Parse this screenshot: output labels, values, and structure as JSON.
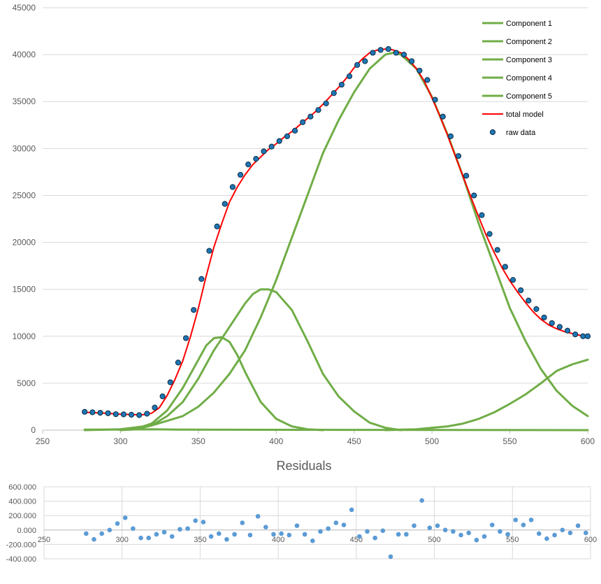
{
  "chart_data": [
    {
      "type": "line",
      "title": "",
      "xlabel": "",
      "ylabel": "",
      "xlim": [
        250,
        600
      ],
      "ylim": [
        0,
        45000
      ],
      "x_ticks": [
        250,
        300,
        350,
        400,
        450,
        500,
        550,
        600
      ],
      "y_ticks": [
        0,
        5000,
        10000,
        15000,
        20000,
        25000,
        30000,
        35000,
        40000,
        45000
      ],
      "x_tick_labels": [
        "250",
        "300",
        "350",
        "400",
        "450",
        "500",
        "550",
        "600"
      ],
      "y_tick_labels": [
        "0",
        "5000",
        "10000",
        "15000",
        "20000",
        "25000",
        "30000",
        "35000",
        "40000",
        "45000"
      ],
      "grid": "horizontal",
      "legend_position": "top-right",
      "colors": {
        "component": "#70ad47",
        "total": "#ff0000",
        "raw_fill": "#1f77b4",
        "raw_edge": "#0b2b45",
        "grid": "#d9d9d9"
      },
      "legend": [
        {
          "label": "Component 1",
          "kind": "line",
          "color": "#70ad47"
        },
        {
          "label": "Component 2",
          "kind": "line",
          "color": "#70ad47"
        },
        {
          "label": "Component 3",
          "kind": "line",
          "color": "#70ad47"
        },
        {
          "label": "Component 4",
          "kind": "line",
          "color": "#70ad47"
        },
        {
          "label": "Component 5",
          "kind": "line",
          "color": "#70ad47"
        },
        {
          "label": "total model",
          "kind": "line",
          "color": "#ff0000"
        },
        {
          "label": "raw data",
          "kind": "marker",
          "color": "#1f77b4"
        }
      ],
      "series": [
        {
          "name": "Component 1",
          "x": [
            277,
            300,
            320,
            340,
            600
          ],
          "y": [
            50,
            50,
            100,
            50,
            0
          ]
        },
        {
          "name": "Component 2",
          "x": [
            300,
            310,
            320,
            330,
            340,
            350,
            355,
            360,
            365,
            370,
            375,
            380,
            390,
            400,
            410,
            420,
            430
          ],
          "y": [
            0,
            150,
            700,
            2100,
            4500,
            7500,
            9000,
            9800,
            9900,
            9400,
            8000,
            6200,
            3000,
            1200,
            400,
            100,
            0
          ]
        },
        {
          "name": "Component 3",
          "x": [
            300,
            310,
            320,
            330,
            340,
            350,
            360,
            370,
            380,
            385,
            390,
            395,
            400,
            410,
            420,
            430,
            440,
            450,
            460,
            470,
            480
          ],
          "y": [
            0,
            100,
            500,
            1500,
            3000,
            5500,
            8500,
            11000,
            13500,
            14500,
            15000,
            15000,
            14700,
            12800,
            9500,
            6000,
            3600,
            2000,
            800,
            250,
            0
          ]
        },
        {
          "name": "Component 4",
          "x": [
            277,
            300,
            320,
            340,
            350,
            360,
            370,
            380,
            390,
            400,
            410,
            420,
            430,
            440,
            450,
            460,
            470,
            475,
            480,
            490,
            500,
            510,
            520,
            530,
            540,
            550,
            560,
            570,
            580,
            590,
            600
          ],
          "y": [
            0,
            100,
            500,
            1500,
            2500,
            4000,
            6000,
            8500,
            12000,
            16000,
            20500,
            25000,
            29500,
            33000,
            36000,
            38500,
            40000,
            40200,
            40000,
            38500,
            35500,
            31500,
            27000,
            22000,
            17500,
            13000,
            9500,
            6500,
            4200,
            2600,
            1500
          ]
        },
        {
          "name": "Component 5",
          "x": [
            470,
            480,
            490,
            500,
            510,
            520,
            530,
            540,
            550,
            560,
            570,
            580,
            590,
            600
          ],
          "y": [
            0,
            50,
            100,
            250,
            400,
            700,
            1200,
            1900,
            2800,
            3800,
            5000,
            6300,
            7000,
            7500
          ]
        },
        {
          "name": "total model",
          "x": [
            277,
            290,
            300,
            310,
            315,
            320,
            325,
            330,
            335,
            340,
            345,
            350,
            355,
            360,
            365,
            370,
            375,
            380,
            385,
            390,
            395,
            400,
            405,
            410,
            415,
            420,
            425,
            430,
            435,
            440,
            445,
            450,
            455,
            460,
            465,
            470,
            475,
            480,
            485,
            490,
            495,
            500,
            505,
            510,
            515,
            520,
            525,
            530,
            535,
            540,
            545,
            550,
            555,
            560,
            565,
            570,
            575,
            580,
            585,
            590,
            595,
            600
          ],
          "y": [
            1900,
            1800,
            1700,
            1650,
            1650,
            1800,
            2400,
            3700,
            5400,
            7400,
            10000,
            13000,
            16400,
            19500,
            22000,
            24300,
            25900,
            27200,
            28300,
            29100,
            29900,
            30500,
            31200,
            31800,
            32500,
            33200,
            33900,
            34700,
            35600,
            36500,
            37500,
            38600,
            39500,
            40200,
            40500,
            40600,
            40500,
            40200,
            39500,
            38500,
            37200,
            35400,
            33500,
            31400,
            29200,
            27000,
            24800,
            22700,
            20700,
            18900,
            17300,
            15900,
            14700,
            13600,
            12600,
            11800,
            11200,
            10800,
            10500,
            10300,
            10100,
            10000
          ]
        },
        {
          "name": "raw data",
          "x": [
            277,
            282,
            287,
            292,
            297,
            302,
            307,
            312,
            317,
            322,
            327,
            332,
            337,
            342,
            347,
            352,
            357,
            362,
            367,
            372,
            377,
            382,
            387,
            392,
            397,
            402,
            407,
            412,
            417,
            422,
            427,
            432,
            437,
            442,
            447,
            452,
            457,
            462,
            467,
            472,
            477,
            482,
            487,
            492,
            497,
            502,
            507,
            512,
            517,
            522,
            527,
            532,
            537,
            542,
            547,
            552,
            557,
            562,
            567,
            572,
            577,
            582,
            587,
            592,
            597,
            600
          ],
          "y": [
            1950,
            1900,
            1850,
            1800,
            1700,
            1680,
            1640,
            1600,
            1750,
            2400,
            3600,
            5100,
            7200,
            9800,
            12800,
            16100,
            19100,
            21700,
            24100,
            25900,
            27200,
            28300,
            28900,
            29700,
            30200,
            30800,
            31300,
            31900,
            32800,
            33400,
            34100,
            34800,
            35900,
            36800,
            37700,
            38900,
            39300,
            40200,
            40500,
            40600,
            40200,
            40000,
            39300,
            38300,
            37300,
            35200,
            33400,
            31300,
            29200,
            27100,
            25000,
            22900,
            20900,
            19200,
            17400,
            16000,
            14900,
            13800,
            12900,
            12000,
            11400,
            11000,
            10600,
            10200,
            10000,
            10000
          ]
        }
      ]
    },
    {
      "type": "scatter",
      "title": "Residuals",
      "xlabel": "",
      "ylabel": "",
      "xlim": [
        250,
        600
      ],
      "ylim": [
        -400,
        600
      ],
      "x_ticks": [
        250,
        300,
        350,
        400,
        450,
        500,
        550,
        600
      ],
      "y_ticks": [
        -400,
        -200,
        0,
        200,
        400,
        600
      ],
      "x_tick_labels": [
        "250",
        "300",
        "350",
        "400",
        "450",
        "500",
        "550",
        "600"
      ],
      "y_tick_labels": [
        "-400.000",
        "-200.000",
        "0.000",
        "200.000",
        "400.000",
        "600.000"
      ],
      "grid": "both",
      "colors": {
        "points": "#5b9bd5",
        "grid": "#d9d9d9"
      },
      "series": [
        {
          "name": "residuals",
          "x": [
            277,
            282,
            287,
            292,
            297,
            302,
            307,
            312,
            317,
            322,
            327,
            332,
            337,
            342,
            347,
            352,
            357,
            362,
            367,
            372,
            377,
            382,
            387,
            392,
            397,
            402,
            407,
            412,
            417,
            422,
            427,
            432,
            437,
            442,
            447,
            452,
            457,
            462,
            467,
            472,
            477,
            482,
            487,
            492,
            497,
            502,
            507,
            512,
            517,
            522,
            527,
            532,
            537,
            542,
            547,
            552,
            557,
            562,
            567,
            572,
            577,
            582,
            587,
            592,
            597
          ],
          "y": [
            -50,
            -130,
            -50,
            0,
            90,
            170,
            20,
            -110,
            -110,
            -60,
            -30,
            -90,
            10,
            20,
            130,
            110,
            -90,
            -50,
            -130,
            -60,
            100,
            -70,
            190,
            40,
            -60,
            -50,
            -70,
            60,
            -60,
            -150,
            -20,
            20,
            100,
            70,
            280,
            -90,
            -20,
            -110,
            -10,
            -370,
            -60,
            -60,
            60,
            410,
            30,
            60,
            0,
            -20,
            -70,
            -40,
            -140,
            -90,
            70,
            -20,
            -60,
            140,
            70,
            140,
            -50,
            -120,
            -70,
            0,
            -40,
            60,
            -40
          ]
        }
      ]
    }
  ]
}
